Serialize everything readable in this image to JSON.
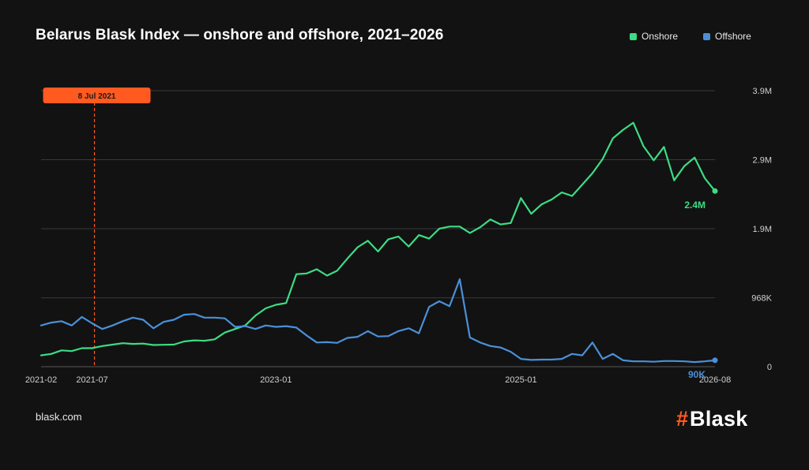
{
  "title": "Belarus Blask Index — onshore and offshore, 2021–2026",
  "legend": [
    {
      "label": "Onshore",
      "color": "#3ddc84"
    },
    {
      "label": "Offshore",
      "color": "#4a90d9"
    }
  ],
  "source": "blask.com",
  "brand": {
    "hash": "#",
    "word": "Blask",
    "accent": "#ff5a1f"
  },
  "annotation": {
    "label": "8 Jul 2021",
    "date": "2021-07-08",
    "color": "#ff5a1f"
  },
  "chart_data": {
    "type": "line",
    "title": "Belarus Blask Index — onshore and offshore, 2021–2026",
    "xlabel": "",
    "ylabel": "",
    "x_range": [
      "2021-02",
      "2026-08"
    ],
    "ylim": [
      0,
      3900000
    ],
    "y_ticks": [
      {
        "value": 0,
        "label": "0"
      },
      {
        "value": 968000,
        "label": "968K"
      },
      {
        "value": 1940000,
        "label": "1.9M"
      },
      {
        "value": 2910000,
        "label": "2.9M"
      },
      {
        "value": 3880000,
        "label": "3.9M"
      }
    ],
    "x_ticks": [
      {
        "date": "2021-02",
        "label": "2021-02"
      },
      {
        "date": "2021-07",
        "label": "2021-07"
      },
      {
        "date": "2023-01",
        "label": "2023-01"
      },
      {
        "date": "2025-01",
        "label": "2025-01"
      },
      {
        "date": "2026-08",
        "label": "2026-08"
      }
    ],
    "grid": true,
    "legend_position": "top-right",
    "end_labels": [
      {
        "series": "Onshore",
        "label": "2.4M"
      },
      {
        "series": "Offshore",
        "label": "90K"
      }
    ],
    "series": [
      {
        "name": "Onshore",
        "color": "#3ddc84",
        "points": [
          [
            "2021-02",
            160000
          ],
          [
            "2021-03",
            180000
          ],
          [
            "2021-04",
            230000
          ],
          [
            "2021-05",
            220000
          ],
          [
            "2021-06",
            260000
          ],
          [
            "2021-07",
            260000
          ],
          [
            "2021-08",
            290000
          ],
          [
            "2021-09",
            310000
          ],
          [
            "2021-10",
            330000
          ],
          [
            "2021-11",
            320000
          ],
          [
            "2021-12",
            325000
          ],
          [
            "2022-01",
            305000
          ],
          [
            "2022-02",
            308000
          ],
          [
            "2022-03",
            310000
          ],
          [
            "2022-04",
            355000
          ],
          [
            "2022-05",
            370000
          ],
          [
            "2022-06",
            365000
          ],
          [
            "2022-07",
            385000
          ],
          [
            "2022-08",
            480000
          ],
          [
            "2022-09",
            530000
          ],
          [
            "2022-10",
            580000
          ],
          [
            "2022-11",
            720000
          ],
          [
            "2022-12",
            820000
          ],
          [
            "2023-01",
            870000
          ],
          [
            "2023-02",
            895000
          ],
          [
            "2023-03",
            1300000
          ],
          [
            "2023-04",
            1310000
          ],
          [
            "2023-05",
            1370000
          ],
          [
            "2023-06",
            1280000
          ],
          [
            "2023-07",
            1350000
          ],
          [
            "2023-08",
            1520000
          ],
          [
            "2023-09",
            1680000
          ],
          [
            "2023-10",
            1770000
          ],
          [
            "2023-11",
            1620000
          ],
          [
            "2023-12",
            1790000
          ],
          [
            "2024-01",
            1830000
          ],
          [
            "2024-02",
            1690000
          ],
          [
            "2024-03",
            1850000
          ],
          [
            "2024-04",
            1800000
          ],
          [
            "2024-05",
            1940000
          ],
          [
            "2024-06",
            1970000
          ],
          [
            "2024-07",
            1970000
          ],
          [
            "2024-08",
            1880000
          ],
          [
            "2024-09",
            1960000
          ],
          [
            "2024-10",
            2070000
          ],
          [
            "2024-11",
            2000000
          ],
          [
            "2024-12",
            2020000
          ],
          [
            "2025-01",
            2370000
          ],
          [
            "2025-02",
            2150000
          ],
          [
            "2025-03",
            2280000
          ],
          [
            "2025-04",
            2350000
          ],
          [
            "2025-05",
            2450000
          ],
          [
            "2025-06",
            2400000
          ],
          [
            "2025-07",
            2560000
          ],
          [
            "2025-08",
            2720000
          ],
          [
            "2025-09",
            2920000
          ],
          [
            "2025-10",
            3210000
          ],
          [
            "2025-11",
            3330000
          ],
          [
            "2025-12",
            3430000
          ],
          [
            "2026-01",
            3100000
          ],
          [
            "2026-02",
            2900000
          ],
          [
            "2026-03",
            3090000
          ],
          [
            "2026-04",
            2620000
          ],
          [
            "2026-05",
            2820000
          ],
          [
            "2026-06",
            2940000
          ],
          [
            "2026-07",
            2650000
          ],
          [
            "2026-08",
            2470000
          ]
        ]
      },
      {
        "name": "Offshore",
        "color": "#4a90d9",
        "points": [
          [
            "2021-02",
            580000
          ],
          [
            "2021-03",
            620000
          ],
          [
            "2021-04",
            640000
          ],
          [
            "2021-05",
            580000
          ],
          [
            "2021-06",
            700000
          ],
          [
            "2021-07",
            610000
          ],
          [
            "2021-08",
            530000
          ],
          [
            "2021-09",
            580000
          ],
          [
            "2021-10",
            640000
          ],
          [
            "2021-11",
            690000
          ],
          [
            "2021-12",
            660000
          ],
          [
            "2022-01",
            540000
          ],
          [
            "2022-02",
            630000
          ],
          [
            "2022-03",
            660000
          ],
          [
            "2022-04",
            730000
          ],
          [
            "2022-05",
            740000
          ],
          [
            "2022-06",
            690000
          ],
          [
            "2022-07",
            690000
          ],
          [
            "2022-08",
            680000
          ],
          [
            "2022-09",
            560000
          ],
          [
            "2022-10",
            570000
          ],
          [
            "2022-11",
            530000
          ],
          [
            "2022-12",
            580000
          ],
          [
            "2023-01",
            560000
          ],
          [
            "2023-02",
            570000
          ],
          [
            "2023-03",
            550000
          ],
          [
            "2023-04",
            440000
          ],
          [
            "2023-05",
            340000
          ],
          [
            "2023-06",
            345000
          ],
          [
            "2023-07",
            335000
          ],
          [
            "2023-08",
            405000
          ],
          [
            "2023-09",
            420000
          ],
          [
            "2023-10",
            500000
          ],
          [
            "2023-11",
            425000
          ],
          [
            "2023-12",
            430000
          ],
          [
            "2024-01",
            500000
          ],
          [
            "2024-02",
            540000
          ],
          [
            "2024-03",
            470000
          ],
          [
            "2024-04",
            840000
          ],
          [
            "2024-05",
            920000
          ],
          [
            "2024-06",
            850000
          ],
          [
            "2024-07",
            1230000
          ],
          [
            "2024-08",
            410000
          ],
          [
            "2024-09",
            340000
          ],
          [
            "2024-10",
            290000
          ],
          [
            "2024-11",
            270000
          ],
          [
            "2024-12",
            210000
          ],
          [
            "2025-01",
            110000
          ],
          [
            "2025-02",
            95000
          ],
          [
            "2025-03",
            100000
          ],
          [
            "2025-04",
            100000
          ],
          [
            "2025-05",
            110000
          ],
          [
            "2025-06",
            180000
          ],
          [
            "2025-07",
            160000
          ],
          [
            "2025-08",
            340000
          ],
          [
            "2025-09",
            110000
          ],
          [
            "2025-10",
            180000
          ],
          [
            "2025-11",
            90000
          ],
          [
            "2025-12",
            75000
          ],
          [
            "2026-01",
            75000
          ],
          [
            "2026-02",
            70000
          ],
          [
            "2026-03",
            80000
          ],
          [
            "2026-04",
            80000
          ],
          [
            "2026-05",
            75000
          ],
          [
            "2026-06",
            65000
          ],
          [
            "2026-07",
            75000
          ],
          [
            "2026-08",
            90000
          ]
        ]
      }
    ]
  }
}
